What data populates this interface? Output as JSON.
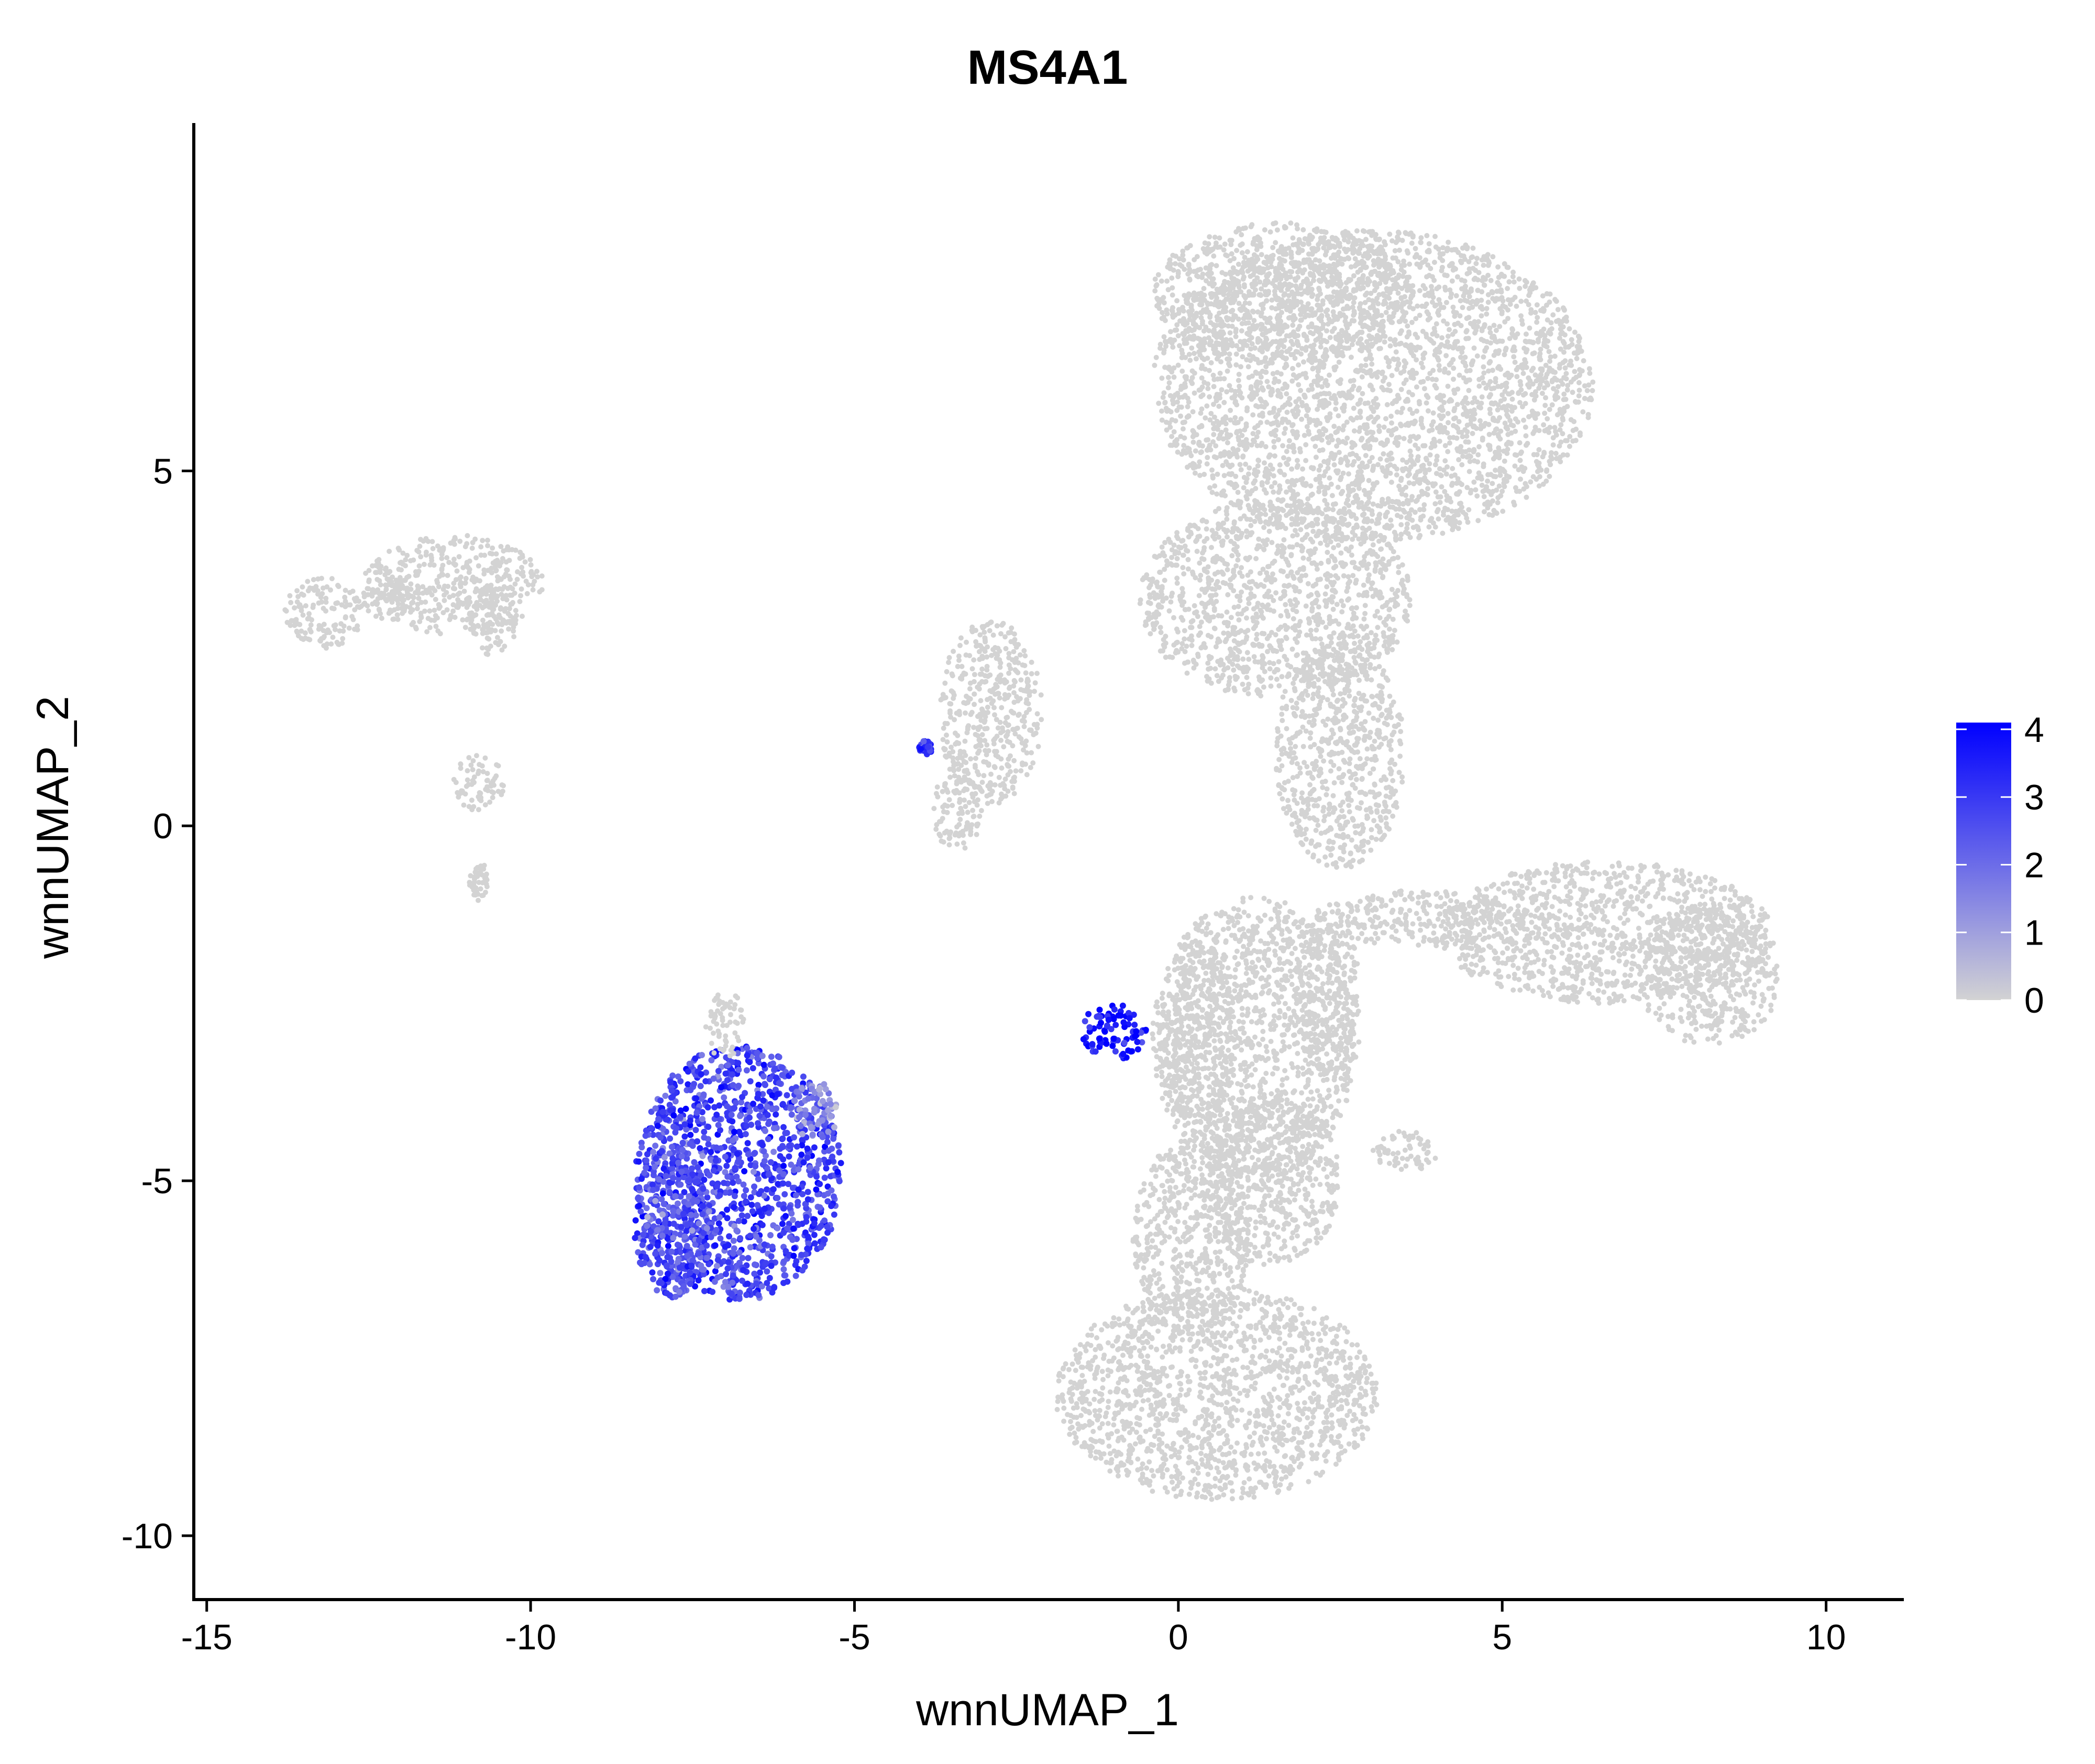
{
  "chart_data": {
    "type": "scatter",
    "title": "MS4A1",
    "xlabel": "wnnUMAP_1",
    "ylabel": "wnnUMAP_2",
    "xlim": [
      -15.2,
      11.2
    ],
    "ylim": [
      -10.9,
      9.9
    ],
    "x_ticks": [
      {
        "value": -15,
        "label": "-15"
      },
      {
        "value": -10,
        "label": "-10"
      },
      {
        "value": -5,
        "label": "-5"
      },
      {
        "value": 0,
        "label": "0"
      },
      {
        "value": 5,
        "label": "5"
      },
      {
        "value": 10,
        "label": "10"
      }
    ],
    "y_ticks": [
      {
        "value": 5,
        "label": "5"
      },
      {
        "value": 0,
        "label": "0"
      },
      {
        "value": -5,
        "label": "-5"
      },
      {
        "value": -10,
        "label": "-10"
      }
    ],
    "grid": false,
    "legend": {
      "position": "right",
      "type": "colorbar",
      "min": 0,
      "max": 4.1,
      "ticks": [
        {
          "value": 4,
          "label": "4"
        },
        {
          "value": 3,
          "label": "3"
        },
        {
          "value": 2,
          "label": "2"
        },
        {
          "value": 1,
          "label": "1"
        },
        {
          "value": 0,
          "label": "0"
        }
      ],
      "low_color": "#d3d3d3",
      "high_color": "#0000ff"
    },
    "clusters": [
      {
        "cx": 3.0,
        "cy": 6.2,
        "rx": 3.4,
        "ry": 2.2,
        "expr": 0
      },
      {
        "cx": 1.6,
        "cy": 7.5,
        "rx": 2.0,
        "ry": 1.0,
        "expr": 0
      },
      {
        "cx": 1.5,
        "cy": 3.2,
        "rx": 2.1,
        "ry": 1.4,
        "expr": 0
      },
      {
        "cx": 2.5,
        "cy": 1.0,
        "rx": 1.0,
        "ry": 1.6,
        "expr": 0
      },
      {
        "cx": -2.9,
        "cy": 1.6,
        "rx": 0.8,
        "ry": 1.3,
        "expr": 0
      },
      {
        "cx": -3.4,
        "cy": 0.2,
        "rx": 0.4,
        "ry": 0.6,
        "expr": 0
      },
      {
        "cx": 6.6,
        "cy": -1.5,
        "rx": 2.6,
        "ry": 1.0,
        "expr": 0
      },
      {
        "cx": 8.2,
        "cy": -2.1,
        "rx": 1.1,
        "ry": 1.0,
        "expr": 0
      },
      {
        "cx": 3.8,
        "cy": -1.3,
        "rx": 1.6,
        "ry": 0.4,
        "expr": 0
      },
      {
        "cx": 2.3,
        "cy": -2.3,
        "rx": 0.5,
        "ry": 1.2,
        "expr": 0
      },
      {
        "cx": 0.3,
        "cy": -3.0,
        "rx": 0.6,
        "ry": 1.4,
        "expr": 0
      },
      {
        "cx": 1.2,
        "cy": -3.0,
        "rx": 1.6,
        "ry": 2.0,
        "expr": 0
      },
      {
        "cx": 1.4,
        "cy": -5.0,
        "rx": 1.1,
        "ry": 1.2,
        "expr": 0
      },
      {
        "cx": 0.2,
        "cy": -5.8,
        "rx": 0.9,
        "ry": 1.4,
        "expr": 0
      },
      {
        "cx": 0.6,
        "cy": -8.0,
        "rx": 2.5,
        "ry": 1.5,
        "expr": 0
      },
      {
        "cx": 3.5,
        "cy": -4.6,
        "rx": 0.5,
        "ry": 0.3,
        "expr": 0
      },
      {
        "cx": -11.2,
        "cy": 3.4,
        "rx": 1.4,
        "ry": 0.7,
        "expr": 0
      },
      {
        "cx": -13.2,
        "cy": 3.0,
        "rx": 0.6,
        "ry": 0.5,
        "expr": 0
      },
      {
        "cx": -12.2,
        "cy": 3.2,
        "rx": 0.6,
        "ry": 0.3,
        "expr": 0
      },
      {
        "cx": -10.6,
        "cy": 2.9,
        "rx": 0.4,
        "ry": 0.5,
        "expr": 0
      },
      {
        "cx": -10.8,
        "cy": 0.6,
        "rx": 0.4,
        "ry": 0.4,
        "expr": 0
      },
      {
        "cx": -10.8,
        "cy": -0.8,
        "rx": 0.15,
        "ry": 0.3,
        "expr": 0
      },
      {
        "cx": -6.8,
        "cy": -4.9,
        "rx": 1.6,
        "ry": 1.8,
        "expr": 2.8
      },
      {
        "cx": -7.8,
        "cy": -5.6,
        "rx": 0.6,
        "ry": 1.1,
        "expr": 2.5
      },
      {
        "cx": -5.6,
        "cy": -4.0,
        "rx": 0.4,
        "ry": 0.4,
        "expr": 1.5
      },
      {
        "cx": -7.0,
        "cy": -2.8,
        "rx": 0.3,
        "ry": 0.5,
        "expr": 0
      },
      {
        "cx": -1.0,
        "cy": -2.9,
        "rx": 0.5,
        "ry": 0.4,
        "expr": 3.5
      },
      {
        "cx": -3.9,
        "cy": 1.1,
        "rx": 0.1,
        "ry": 0.1,
        "expr": 3.0
      }
    ]
  }
}
